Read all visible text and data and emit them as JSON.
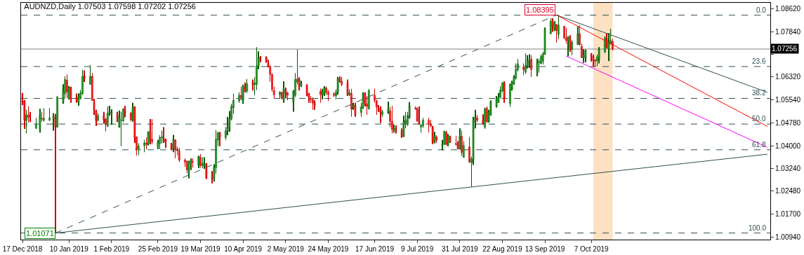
{
  "chart_data": {
    "type": "candlestick",
    "title": "AUDNZD,Daily 1.07503 1.07598 1.07202 1.07256",
    "x": [
      "2018-12-17",
      "2018-12-18",
      "2018-12-19",
      "2018-12-20",
      "2018-12-21",
      "2018-12-24",
      "2018-12-26",
      "2018-12-27",
      "2018-12-28",
      "2018-12-31",
      "2019-01-02",
      "2019-01-03",
      "2019-01-04",
      "2019-01-07",
      "2019-01-08",
      "2019-01-09",
      "2019-01-10",
      "2019-01-11",
      "2019-01-14",
      "2019-01-15",
      "2019-01-16",
      "2019-01-17",
      "2019-01-18",
      "2019-01-21",
      "2019-01-22",
      "2019-01-23",
      "2019-01-24",
      "2019-01-25",
      "2019-01-28",
      "2019-01-29",
      "2019-01-30",
      "2019-01-31",
      "2019-02-01",
      "2019-02-04",
      "2019-02-05",
      "2019-02-06",
      "2019-02-07",
      "2019-02-08",
      "2019-02-11",
      "2019-02-12",
      "2019-02-13",
      "2019-02-14",
      "2019-02-15",
      "2019-02-18",
      "2019-02-19",
      "2019-02-20",
      "2019-02-21",
      "2019-02-22",
      "2019-02-25",
      "2019-02-26",
      "2019-02-27",
      "2019-02-28",
      "2019-03-01",
      "2019-03-04",
      "2019-03-05",
      "2019-03-06",
      "2019-03-07",
      "2019-03-08",
      "2019-03-11",
      "2019-03-12",
      "2019-03-13",
      "2019-03-14",
      "2019-03-15",
      "2019-03-18",
      "2019-03-19",
      "2019-03-20",
      "2019-03-21",
      "2019-03-22",
      "2019-03-25",
      "2019-03-26",
      "2019-03-27",
      "2019-03-28",
      "2019-03-29",
      "2019-04-01",
      "2019-04-02",
      "2019-04-03",
      "2019-04-04",
      "2019-04-05",
      "2019-04-08",
      "2019-04-09",
      "2019-04-10",
      "2019-04-11",
      "2019-04-12",
      "2019-04-15",
      "2019-04-16",
      "2019-04-17",
      "2019-04-18",
      "2019-04-19",
      "2019-04-22",
      "2019-04-23",
      "2019-04-24",
      "2019-04-25",
      "2019-04-26",
      "2019-04-29",
      "2019-04-30",
      "2019-05-01",
      "2019-05-02",
      "2019-05-03",
      "2019-05-06",
      "2019-05-07",
      "2019-05-08",
      "2019-05-09",
      "2019-05-10",
      "2019-05-13",
      "2019-05-14",
      "2019-05-15",
      "2019-05-16",
      "2019-05-17",
      "2019-05-20",
      "2019-05-21",
      "2019-05-22",
      "2019-05-23",
      "2019-05-24",
      "2019-05-27",
      "2019-05-28",
      "2019-05-29",
      "2019-05-30",
      "2019-05-31",
      "2019-06-03",
      "2019-06-04",
      "2019-06-05",
      "2019-06-06",
      "2019-06-07",
      "2019-06-10",
      "2019-06-11",
      "2019-06-12",
      "2019-06-13",
      "2019-06-14",
      "2019-06-17",
      "2019-06-18",
      "2019-06-19",
      "2019-06-20",
      "2019-06-21",
      "2019-06-24",
      "2019-06-25",
      "2019-06-26",
      "2019-06-27",
      "2019-06-28",
      "2019-07-01",
      "2019-07-02",
      "2019-07-03",
      "2019-07-04",
      "2019-07-05",
      "2019-07-08",
      "2019-07-09",
      "2019-07-10",
      "2019-07-11",
      "2019-07-12",
      "2019-07-15",
      "2019-07-16",
      "2019-07-17",
      "2019-07-18",
      "2019-07-19",
      "2019-07-22",
      "2019-07-23",
      "2019-07-24",
      "2019-07-25",
      "2019-07-26",
      "2019-07-29",
      "2019-07-30",
      "2019-07-31",
      "2019-08-01",
      "2019-08-02",
      "2019-08-05",
      "2019-08-06",
      "2019-08-07",
      "2019-08-08",
      "2019-08-09",
      "2019-08-12",
      "2019-08-13",
      "2019-08-14",
      "2019-08-15",
      "2019-08-16",
      "2019-08-19",
      "2019-08-20",
      "2019-08-21",
      "2019-08-22",
      "2019-08-23",
      "2019-08-26",
      "2019-08-27",
      "2019-08-28",
      "2019-08-29",
      "2019-08-30",
      "2019-09-02",
      "2019-09-03",
      "2019-09-04",
      "2019-09-05",
      "2019-09-06",
      "2019-09-09",
      "2019-09-10",
      "2019-09-11",
      "2019-09-12",
      "2019-09-13",
      "2019-09-16",
      "2019-09-17",
      "2019-09-18",
      "2019-09-19",
      "2019-09-20",
      "2019-09-23",
      "2019-09-24",
      "2019-09-25",
      "2019-09-26",
      "2019-09-27",
      "2019-09-30",
      "2019-10-01",
      "2019-10-02",
      "2019-10-03",
      "2019-10-04",
      "2019-10-07",
      "2019-10-08",
      "2019-10-09",
      "2019-10-10",
      "2019-10-11",
      "2019-10-14",
      "2019-10-15",
      "2019-10-16",
      "2019-10-17",
      "2019-10-18"
    ],
    "ohlc": [
      [
        1.0551,
        1.0578,
        1.0537,
        1.0545
      ],
      [
        1.0551,
        1.0554,
        1.0457,
        1.0488
      ],
      [
        1.0485,
        1.0521,
        1.0442,
        1.0504
      ],
      [
        1.0504,
        1.0533,
        1.0478,
        1.0496
      ],
      [
        1.0487,
        1.0514,
        1.048,
        1.0485
      ],
      [
        1.0459,
        1.0494,
        1.0457,
        1.0471
      ],
      [
        1.0457,
        1.0525,
        1.0445,
        1.0502
      ],
      [
        1.0493,
        1.0514,
        1.0482,
        1.0491
      ],
      [
        1.0486,
        1.0527,
        1.0482,
        1.0492
      ],
      [
        1.0486,
        1.0527,
        1.0484,
        1.0494
      ],
      [
        1.0492,
        1.051,
        1.0451,
        1.0498
      ],
      [
        1.0494,
        1.0508,
        1.01071,
        1.0465
      ],
      [
        1.0463,
        1.0568,
        1.0461,
        1.0564
      ],
      [
        1.0545,
        1.0607,
        1.0541,
        1.0586
      ],
      [
        1.0576,
        1.0634,
        1.0562,
        1.0623
      ],
      [
        1.0621,
        1.064,
        1.056,
        1.0582
      ],
      [
        1.056,
        1.0601,
        1.0556,
        1.0597
      ],
      [
        1.0597,
        1.0599,
        1.0545,
        1.0556
      ],
      [
        1.0562,
        1.0576,
        1.0545,
        1.0549
      ],
      [
        1.0549,
        1.0576,
        1.0535,
        1.0566
      ],
      [
        1.056,
        1.0588,
        1.0556,
        1.0578
      ],
      [
        1.0576,
        1.0656,
        1.0572,
        1.0634
      ],
      [
        1.0634,
        1.0654,
        1.0615,
        1.0627
      ],
      [
        1.0607,
        1.0672,
        1.0607,
        1.0634
      ],
      [
        1.0634,
        1.0645,
        1.0551,
        1.0553
      ],
      [
        1.0547,
        1.0558,
        1.0504,
        1.0519
      ],
      [
        1.0517,
        1.0521,
        1.0467,
        1.0486
      ],
      [
        1.0486,
        1.051,
        1.0482,
        1.0502
      ],
      [
        1.0502,
        1.0514,
        1.0475,
        1.0488
      ],
      [
        1.049,
        1.0494,
        1.0449,
        1.0471
      ],
      [
        1.0467,
        1.0533,
        1.0463,
        1.051
      ],
      [
        1.051,
        1.0535,
        1.0502,
        1.0515
      ],
      [
        1.051,
        1.0523,
        1.0471,
        1.0514
      ],
      [
        1.0504,
        1.0515,
        1.048,
        1.0494
      ],
      [
        1.0463,
        1.0519,
        1.0461,
        1.0494
      ],
      [
        1.0486,
        1.0514,
        1.0399,
        1.0487
      ],
      [
        1.0484,
        1.0527,
        1.048,
        1.0524
      ],
      [
        1.0519,
        1.0535,
        1.0496,
        1.051
      ],
      [
        1.051,
        1.0514,
        1.0482,
        1.0488
      ],
      [
        1.0486,
        1.0545,
        1.0482,
        1.0531
      ],
      [
        1.0531,
        1.0533,
        1.041,
        1.0428
      ],
      [
        1.043,
        1.0432,
        1.0367,
        1.0389
      ],
      [
        1.0391,
        1.0408,
        1.0369,
        1.0399
      ],
      [
        1.0401,
        1.042,
        1.0379,
        1.041
      ],
      [
        1.041,
        1.0428,
        1.0389,
        1.0405
      ],
      [
        1.0405,
        1.0449,
        1.0401,
        1.0447
      ],
      [
        1.0447,
        1.049,
        1.0405,
        1.0422
      ],
      [
        1.0422,
        1.049,
        1.0405,
        1.0414
      ],
      [
        1.0397,
        1.042,
        1.0389,
        1.0412
      ],
      [
        1.0408,
        1.0436,
        1.0389,
        1.0428
      ],
      [
        1.0427,
        1.0451,
        1.0408,
        1.043
      ],
      [
        1.0424,
        1.0463,
        1.041,
        1.0416
      ],
      [
        1.042,
        1.0424,
        1.0393,
        1.0414
      ],
      [
        1.0405,
        1.041,
        1.0385,
        1.0387
      ],
      [
        1.0391,
        1.0437,
        1.0379,
        1.0422
      ],
      [
        1.042,
        1.0422,
        1.0358,
        1.0389
      ],
      [
        1.0389,
        1.0397,
        1.0369,
        1.0384
      ],
      [
        1.0383,
        1.0393,
        1.0346,
        1.0352
      ],
      [
        1.0352,
        1.0358,
        1.033,
        1.0346
      ],
      [
        1.0348,
        1.0352,
        1.0307,
        1.0319
      ],
      [
        1.0319,
        1.035,
        1.0291,
        1.0346
      ],
      [
        1.0344,
        1.0358,
        1.0319,
        1.035
      ],
      [
        1.0348,
        1.0358,
        1.0327,
        1.0345
      ],
      [
        1.0336,
        1.0367,
        1.0325,
        1.0364
      ],
      [
        1.0362,
        1.0373,
        1.0327,
        1.0334
      ],
      [
        1.0334,
        1.0362,
        1.0325,
        1.0341
      ],
      [
        1.0334,
        1.0362,
        1.0323,
        1.0341
      ],
      [
        1.0338,
        1.0342,
        1.0289,
        1.0291
      ],
      [
        1.0295,
        1.0315,
        1.0274,
        1.0291
      ],
      [
        1.0289,
        1.0338,
        1.028,
        1.0328
      ],
      [
        1.0327,
        1.0453,
        1.0307,
        1.0422
      ],
      [
        1.042,
        1.0447,
        1.0399,
        1.0444
      ],
      [
        1.0444,
        1.0447,
        1.0399,
        1.0428
      ],
      [
        1.0428,
        1.0463,
        1.042,
        1.0451
      ],
      [
        1.0449,
        1.0498,
        1.0436,
        1.0463
      ],
      [
        1.0461,
        1.0517,
        1.0447,
        1.0492
      ],
      [
        1.049,
        1.0541,
        1.0486,
        1.0533
      ],
      [
        1.0529,
        1.0576,
        1.0508,
        1.0553
      ],
      [
        1.0551,
        1.058,
        1.0545,
        1.057
      ],
      [
        1.057,
        1.0599,
        1.0553,
        1.0563
      ],
      [
        1.0554,
        1.0606,
        1.0541,
        1.0601
      ],
      [
        1.0595,
        1.0613,
        1.058,
        1.0584
      ],
      [
        1.0584,
        1.0625,
        1.0578,
        1.0609
      ],
      [
        1.0613,
        1.0623,
        1.0586,
        1.0606
      ],
      [
        1.0606,
        1.0631,
        1.057,
        1.0611
      ],
      [
        1.0606,
        1.0732,
        1.0588,
        1.0669
      ],
      [
        1.0668,
        1.0718,
        1.0658,
        1.0696
      ],
      [
        1.0697,
        1.0702,
        1.0681,
        1.0693
      ],
      [
        1.0699,
        1.0701,
        1.0679,
        1.0684
      ],
      [
        1.0679,
        1.0689,
        1.0664,
        1.0668
      ],
      [
        1.0668,
        1.0671,
        1.0616,
        1.064
      ],
      [
        1.064,
        1.0645,
        1.0582,
        1.059
      ],
      [
        1.0586,
        1.0599,
        1.056,
        1.0572
      ],
      [
        1.0572,
        1.0584,
        1.0558,
        1.058
      ],
      [
        1.058,
        1.0582,
        1.0556,
        1.056
      ],
      [
        1.0554,
        1.0617,
        1.0545,
        1.0592
      ],
      [
        1.0588,
        1.0596,
        1.056,
        1.0578
      ],
      [
        1.0578,
        1.0582,
        1.0553,
        1.0571
      ],
      [
        1.0547,
        1.0588,
        1.0515,
        1.0584
      ],
      [
        1.057,
        1.0645,
        1.0564,
        1.0623
      ],
      [
        1.0615,
        1.0724,
        1.0607,
        1.0625
      ],
      [
        1.0623,
        1.0631,
        1.0586,
        1.0606
      ],
      [
        1.0601,
        1.0619,
        1.0598,
        1.061
      ],
      [
        1.0603,
        1.0607,
        1.0567,
        1.0572
      ],
      [
        1.0575,
        1.0578,
        1.0545,
        1.0562
      ],
      [
        1.0559,
        1.0568,
        1.0544,
        1.0556
      ],
      [
        1.0556,
        1.0562,
        1.0521,
        1.0544
      ],
      [
        1.0545,
        1.0553,
        1.0521,
        1.0537
      ],
      [
        1.0584,
        1.0593,
        1.0545,
        1.0572
      ],
      [
        1.0571,
        1.0592,
        1.0556,
        1.0582
      ],
      [
        1.0575,
        1.0601,
        1.0568,
        1.0595
      ],
      [
        1.0595,
        1.0599,
        1.0572,
        1.058
      ],
      [
        1.0581,
        1.0588,
        1.0551,
        1.0572
      ],
      [
        1.0575,
        1.058,
        1.0564,
        1.057
      ],
      [
        1.0568,
        1.059,
        1.0556,
        1.0581
      ],
      [
        1.058,
        1.0632,
        1.0572,
        1.0627
      ],
      [
        1.0627,
        1.0634,
        1.0613,
        1.0617
      ],
      [
        1.0617,
        1.0632,
        1.0601,
        1.0606
      ],
      [
        1.0611,
        1.0623,
        1.0568,
        1.0572
      ],
      [
        1.0572,
        1.059,
        1.0567,
        1.0579
      ],
      [
        1.0576,
        1.0592,
        1.0498,
        1.0523
      ],
      [
        1.0529,
        1.0545,
        1.0521,
        1.0537
      ],
      [
        1.0533,
        1.0545,
        1.0498,
        1.0504
      ],
      [
        1.0512,
        1.0545,
        1.0498,
        1.0531
      ],
      [
        1.0529,
        1.058,
        1.0525,
        1.0575
      ],
      [
        1.0578,
        1.058,
        1.0533,
        1.0541
      ],
      [
        1.0541,
        1.0568,
        1.0504,
        1.0533
      ],
      [
        1.0525,
        1.0592,
        1.0521,
        1.0586
      ],
      [
        1.057,
        1.0592,
        1.0545,
        1.0553
      ],
      [
        1.0551,
        1.0556,
        1.0504,
        1.0531
      ],
      [
        1.0529,
        1.0537,
        1.0514,
        1.0527
      ],
      [
        1.0525,
        1.0533,
        1.0477,
        1.0512
      ],
      [
        1.0506,
        1.0521,
        1.0498,
        1.0515
      ],
      [
        1.0512,
        1.0549,
        1.0508,
        1.0523
      ],
      [
        1.0517,
        1.0531,
        1.0463,
        1.0482
      ],
      [
        1.0482,
        1.0535,
        1.0442,
        1.0455
      ],
      [
        1.0451,
        1.0471,
        1.0444,
        1.0459
      ],
      [
        1.0459,
        1.0469,
        1.0442,
        1.0455
      ],
      [
        1.0449,
        1.0459,
        1.0427,
        1.043
      ],
      [
        1.0432,
        1.0502,
        1.043,
        1.048
      ],
      [
        1.0477,
        1.0514,
        1.0459,
        1.0486
      ],
      [
        1.0471,
        1.0514,
        1.0467,
        1.0502
      ],
      [
        1.0496,
        1.0547,
        1.0492,
        1.0535
      ],
      [
        1.0527,
        1.0533,
        1.0521,
        1.0525
      ],
      [
        1.0523,
        1.0529,
        1.0482,
        1.0486
      ],
      [
        1.0484,
        1.0533,
        1.0471,
        1.0475
      ],
      [
        1.0463,
        1.0475,
        1.0444,
        1.0469
      ],
      [
        1.0467,
        1.0494,
        1.0461,
        1.0486
      ],
      [
        1.0486,
        1.0494,
        1.0445,
        1.0475
      ],
      [
        1.0473,
        1.0488,
        1.0463,
        1.0467
      ],
      [
        1.0463,
        1.0467,
        1.0406,
        1.0412
      ],
      [
        1.0412,
        1.0447,
        1.0408,
        1.0432
      ],
      [
        1.043,
        1.0436,
        1.041,
        1.0419
      ],
      [
        1.0401,
        1.042,
        1.0385,
        1.0406
      ],
      [
        1.0405,
        1.0451,
        1.0403,
        1.0449
      ],
      [
        1.0447,
        1.0451,
        1.0401,
        1.0405
      ],
      [
        1.0408,
        1.044,
        1.0399,
        1.0434
      ],
      [
        1.043,
        1.0434,
        1.041,
        1.0414
      ],
      [
        1.0408,
        1.0434,
        1.0401,
        1.0405
      ],
      [
        1.0405,
        1.0416,
        1.0389,
        1.0391
      ],
      [
        1.0389,
        1.0459,
        1.0388,
        1.0432
      ],
      [
        1.0432,
        1.0451,
        1.0367,
        1.0378
      ],
      [
        1.0362,
        1.0416,
        1.036,
        1.0401
      ],
      [
        1.0397,
        1.043,
        1.0342,
        1.0346
      ],
      [
        1.0344,
        1.0364,
        1.0263,
        1.0356
      ],
      [
        1.0354,
        1.0498,
        1.0336,
        1.0488
      ],
      [
        1.0482,
        1.0521,
        1.0459,
        1.0496
      ],
      [
        1.0494,
        1.0504,
        1.048,
        1.0486
      ],
      [
        1.0486,
        1.0506,
        1.0471,
        1.0475
      ],
      [
        1.0463,
        1.0529,
        1.0457,
        1.0525
      ],
      [
        1.0527,
        1.0533,
        1.0477,
        1.0482
      ],
      [
        1.0482,
        1.0521,
        1.0478,
        1.0514
      ],
      [
        1.0504,
        1.0553,
        1.0502,
        1.0549
      ],
      [
        1.0533,
        1.0568,
        1.0529,
        1.0559
      ],
      [
        1.0547,
        1.0578,
        1.0545,
        1.0562
      ],
      [
        1.0564,
        1.0601,
        1.056,
        1.0588
      ],
      [
        1.0586,
        1.0615,
        1.058,
        1.0611
      ],
      [
        1.0611,
        1.0617,
        1.0545,
        1.056
      ],
      [
        1.0543,
        1.0611,
        1.0531,
        1.0607
      ],
      [
        1.059,
        1.0619,
        1.0586,
        1.0613
      ],
      [
        1.0609,
        1.0637,
        1.0606,
        1.0631
      ],
      [
        1.0627,
        1.0677,
        1.0623,
        1.0658
      ],
      [
        1.0656,
        1.0692,
        1.065,
        1.0676
      ],
      [
        1.0666,
        1.0677,
        1.0638,
        1.0656
      ],
      [
        1.0648,
        1.0711,
        1.0642,
        1.0671
      ],
      [
        1.0666,
        1.0705,
        1.066,
        1.0687
      ],
      [
        1.0684,
        1.0708,
        1.0662,
        1.0691
      ],
      [
        1.0691,
        1.0705,
        1.0632,
        1.0657
      ],
      [
        1.0654,
        1.0693,
        1.0634,
        1.0677
      ],
      [
        1.0679,
        1.0693,
        1.0646,
        1.0684
      ],
      [
        1.0677,
        1.0707,
        1.0674,
        1.0701
      ],
      [
        1.0684,
        1.0716,
        1.0674,
        1.071
      ],
      [
        1.0708,
        1.0798,
        1.0707,
        1.0794
      ],
      [
        1.0777,
        1.0829,
        1.0775,
        1.0819
      ],
      [
        1.0821,
        1.0829,
        1.0783,
        1.0801
      ],
      [
        1.079,
        1.0819,
        1.0786,
        1.0814
      ],
      [
        1.0808,
        1.081,
        1.0747,
        1.0788
      ],
      [
        1.0775,
        1.08395,
        1.0759,
        1.0806
      ],
      [
        1.0802,
        1.0804,
        1.0759,
        1.0763
      ],
      [
        1.0763,
        1.0796,
        1.0743,
        1.0754
      ],
      [
        1.0754,
        1.0769,
        1.0701,
        1.0767
      ],
      [
        1.0763,
        1.0772,
        1.0716,
        1.0723
      ],
      [
        1.0724,
        1.0755,
        1.0705,
        1.0749
      ],
      [
        1.0741,
        1.0801,
        1.074,
        1.0777
      ],
      [
        1.0777,
        1.0806,
        1.0736,
        1.074
      ],
      [
        1.0735,
        1.0744,
        1.0695,
        1.0697
      ],
      [
        1.0697,
        1.0725,
        1.0679,
        1.0705
      ],
      [
        1.0697,
        1.0724,
        1.0681,
        1.072
      ],
      [
        1.071,
        1.0712,
        1.0683,
        1.0707
      ],
      [
        1.0702,
        1.0707,
        1.0666,
        1.0687
      ],
      [
        1.0689,
        1.0691,
        1.0668,
        1.0685
      ],
      [
        1.0687,
        1.0707,
        1.0668,
        1.0699
      ],
      [
        1.0691,
        1.0732,
        1.0677,
        1.0724
      ],
      [
        1.0715,
        1.0769,
        1.0712,
        1.0763
      ],
      [
        1.0759,
        1.078,
        1.0728,
        1.0732
      ],
      [
        1.0726,
        1.0779,
        1.0685,
        1.0747
      ],
      [
        1.0744,
        1.0794,
        1.074,
        1.0754
      ],
      [
        1.07503,
        1.07598,
        1.07202,
        1.07256
      ]
    ],
    "series": [
      {
        "type": "line",
        "x": [
          "2019-01-03",
          "2019-09-19"
        ],
        "values": [
          1.0107,
          1.084
        ],
        "color": "#2f4f4f",
        "line_style": "dashed"
      },
      {
        "type": "line",
        "x": [
          "2019-01-03",
          "2020-01-06"
        ],
        "values": [
          1.0107,
          1.0372
        ],
        "color": "#2f4f4f",
        "line_style": "solid"
      },
      {
        "type": "line",
        "x": [
          "2019-09-19",
          "2020-01-06"
        ],
        "values": [
          1.084,
          1.058
        ],
        "color": "#2f4f4f",
        "line_style": "solid"
      },
      {
        "type": "line",
        "x": [
          "2019-09-19",
          "2020-01-06"
        ],
        "values": [
          1.084,
          1.0465
        ],
        "color": "#ff0000",
        "line_style": "solid"
      },
      {
        "type": "line",
        "x": [
          "2019-09-24",
          "2020-01-06"
        ],
        "values": [
          1.0702,
          1.0395
        ],
        "color": "#ff00ff",
        "line_style": "solid"
      }
    ],
    "ref_lines": [
      {
        "axis": "y",
        "value": 1.08395,
        "color": "#2f4f4f",
        "line_style": "dashed"
      },
      {
        "axis": "y",
        "value": 1.06667,
        "color": "#2f4f4f",
        "line_style": "dashed"
      },
      {
        "axis": "y",
        "value": 1.05597,
        "color": "#2f4f4f",
        "line_style": "dashed"
      },
      {
        "axis": "y",
        "value": 1.04733,
        "color": "#2f4f4f",
        "line_style": "dashed"
      },
      {
        "axis": "y",
        "value": 1.03869,
        "color": "#2f4f4f",
        "line_style": "dashed"
      },
      {
        "axis": "y",
        "value": 1.01071,
        "color": "#2f4f4f",
        "line_style": "dashed"
      },
      {
        "axis": "y",
        "value": 1.07256,
        "label": "1.07256",
        "color": "#808080",
        "line_style": "solid"
      }
    ],
    "bands": [
      {
        "axis": "x",
        "from": "2019-10-08",
        "to": "2019-10-18",
        "color": "#fde1c2"
      }
    ],
    "annotations": [
      {
        "text": "1.08395",
        "x": "2019-09-19",
        "y": 1.08395
      },
      {
        "text": "1.01071",
        "x": "2019-01-03",
        "y": 1.01071
      },
      {
        "text": "0.0",
        "x": "2020-01-06",
        "y": 1.08395
      },
      {
        "text": "23.6",
        "x": "2020-01-06",
        "y": 1.06667
      },
      {
        "text": "38.2",
        "x": "2020-01-06",
        "y": 1.05597
      },
      {
        "text": "50.0",
        "x": "2020-01-06",
        "y": 1.04733
      },
      {
        "text": "61.8",
        "x": "2020-01-06",
        "y": 1.03869
      },
      {
        "text": "100.0",
        "x": "2020-01-06",
        "y": 1.01071
      }
    ],
    "xlim": [
      "2018-12-16T06:00",
      "2020-01-07T12:00"
    ],
    "ylim": [
      1.0085,
      1.0881
    ],
    "xticks": [
      {
        "value": "2018-12-17",
        "label": "17 Dec 2018"
      },
      {
        "value": "2019-01-10",
        "label": "10 Jan 2019"
      },
      {
        "value": "2019-02-01",
        "label": "1 Feb 2019"
      },
      {
        "value": "2019-02-25",
        "label": "25 Feb 2019"
      },
      {
        "value": "2019-03-19",
        "label": "19 Mar 2019"
      },
      {
        "value": "2019-04-10",
        "label": "10 Apr 2019"
      },
      {
        "value": "2019-05-02",
        "label": "2 May 2019"
      },
      {
        "value": "2019-05-24",
        "label": "24 May 2019"
      },
      {
        "value": "2019-06-17",
        "label": "17 Jun 2019"
      },
      {
        "value": "2019-07-09",
        "label": "9 Jul 2019"
      },
      {
        "value": "2019-07-31",
        "label": "31 Jul 2019"
      },
      {
        "value": "2019-08-22",
        "label": "22 Aug 2019"
      },
      {
        "value": "2019-09-13",
        "label": "13 Sep 2019"
      },
      {
        "value": "2019-10-07",
        "label": "7 Oct 2019"
      }
    ],
    "yticks": [
      {
        "value": 1.0862,
        "label": "1.08620"
      },
      {
        "value": 1.0784,
        "label": "1.07840"
      },
      {
        "value": 1.0708,
        "label": null
      },
      {
        "value": 1.0632,
        "label": "1.06320"
      },
      {
        "value": 1.0554,
        "label": "1.05540"
      },
      {
        "value": 1.0478,
        "label": "1.04780"
      },
      {
        "value": 1.04,
        "label": "1.04000"
      },
      {
        "value": 1.0324,
        "label": "1.03240"
      },
      {
        "value": 1.0248,
        "label": "1.02480"
      },
      {
        "value": 1.017,
        "label": "1.01700"
      },
      {
        "value": 1.0094,
        "label": "1.00940"
      }
    ]
  }
}
